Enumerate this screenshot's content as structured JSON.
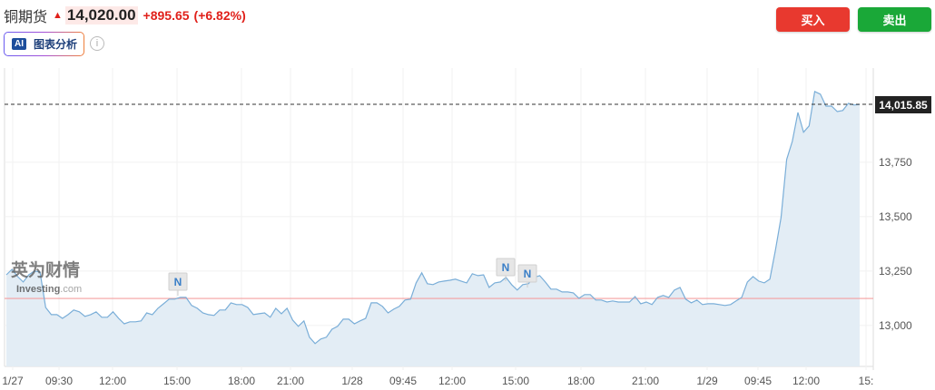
{
  "header": {
    "title": "铜期货",
    "price": "14,020.00",
    "change": "+895.65",
    "change_pct": "(+6.82%)",
    "direction": "up"
  },
  "ai_button": {
    "label": "图表分析",
    "icon_text": "AI"
  },
  "buttons": {
    "buy": "买入",
    "sell": "卖出"
  },
  "colors": {
    "up": "#e0201a",
    "buy": "#e8392f",
    "sell": "#1aa838",
    "line": "#7aaed8",
    "fill": "#e3edf5",
    "prev_close_line": "#f4a0a0"
  },
  "watermark": {
    "cn": "英为财情",
    "en": "Investing",
    "en_suffix": ".com"
  },
  "news_markers": [
    {
      "label": "N"
    },
    {
      "label": "N"
    },
    {
      "label": "N"
    }
  ],
  "chart_data": {
    "type": "area",
    "ylim": [
      12812,
      14183
    ],
    "y_ticks": [
      13000,
      13250,
      13500,
      13750
    ],
    "y_tick_labels": [
      "13,000",
      "13,250",
      "13,500",
      "13,750"
    ],
    "x_tick_labels": [
      "1/27",
      "09:30",
      "12:00",
      "15:00",
      "18:00",
      "21:00",
      "1/28",
      "09:45",
      "12:00",
      "15:00",
      "18:00",
      "21:00",
      "1/29",
      "09:45",
      "12:00",
      "15:"
    ],
    "last_value_label": "14,015.85",
    "last_value": 14015.85,
    "prev_close": 13124.35,
    "grid": true,
    "values": [
      13233,
      13258,
      13225,
      13200,
      13233,
      13250,
      13246,
      13083,
      13050,
      13050,
      13033,
      13050,
      13071,
      13063,
      13042,
      13050,
      13063,
      13038,
      13038,
      13063,
      13033,
      13008,
      13017,
      13017,
      13021,
      13058,
      13050,
      13079,
      13100,
      13121,
      13121,
      13129,
      13129,
      13092,
      13079,
      13058,
      13050,
      13046,
      13071,
      13071,
      13104,
      13096,
      13096,
      13083,
      13050,
      13054,
      13058,
      13038,
      13079,
      13054,
      13079,
      13025,
      12996,
      13021,
      12946,
      12917,
      12938,
      12946,
      12983,
      12996,
      13029,
      13029,
      13008,
      13021,
      13033,
      13104,
      13104,
      13088,
      13058,
      13075,
      13088,
      13117,
      13121,
      13196,
      13242,
      13192,
      13188,
      13200,
      13204,
      13208,
      13213,
      13204,
      13196,
      13238,
      13229,
      13233,
      13175,
      13196,
      13200,
      13221,
      13188,
      13163,
      13188,
      13192,
      13221,
      13229,
      13200,
      13167,
      13167,
      13154,
      13154,
      13150,
      13125,
      13142,
      13142,
      13117,
      13117,
      13108,
      13113,
      13108,
      13108,
      13108,
      13133,
      13100,
      13108,
      13096,
      13129,
      13138,
      13129,
      13163,
      13175,
      13121,
      13104,
      13117,
      13096,
      13100,
      13100,
      13096,
      13092,
      13096,
      13113,
      13129,
      13200,
      13225,
      13204,
      13196,
      13213,
      13346,
      13496,
      13763,
      13846,
      13979,
      13888,
      13917,
      14075,
      14063,
      14008,
      14008,
      13983,
      13988,
      14021,
      14013,
      14016
    ]
  }
}
